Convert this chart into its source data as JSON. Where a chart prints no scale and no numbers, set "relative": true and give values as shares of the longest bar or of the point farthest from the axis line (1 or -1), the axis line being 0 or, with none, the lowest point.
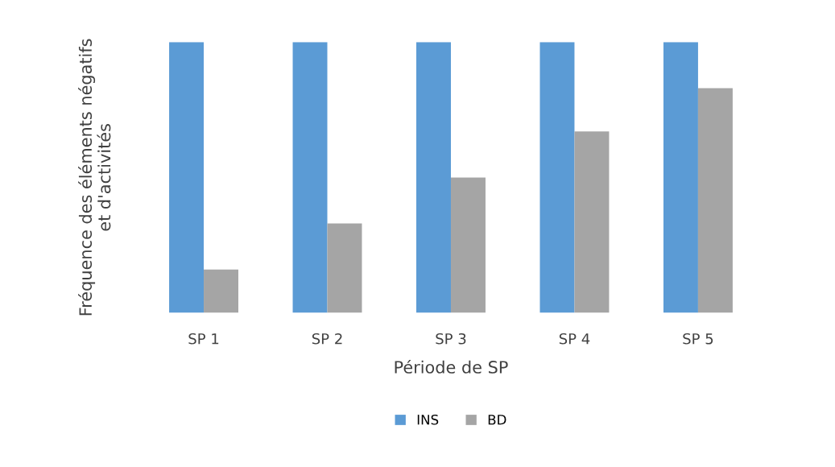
{
  "chart_data": {
    "type": "bar",
    "relative": true,
    "xlabel": "Période de SP",
    "ylabel": "Fréquence des éléments négatifs\net d'activités",
    "categories": [
      "SP 1",
      "SP 2",
      "SP 3",
      "SP 4",
      "SP 5"
    ],
    "series": [
      {
        "name": "INS",
        "color": "#5b9bd5",
        "values": [
          1,
          1,
          1,
          1,
          1
        ]
      },
      {
        "name": "BD",
        "color": "#a5a5a5",
        "values": [
          0.16,
          0.33,
          0.5,
          0.67,
          0.83
        ]
      }
    ],
    "legend": "bottom",
    "grid": false
  }
}
